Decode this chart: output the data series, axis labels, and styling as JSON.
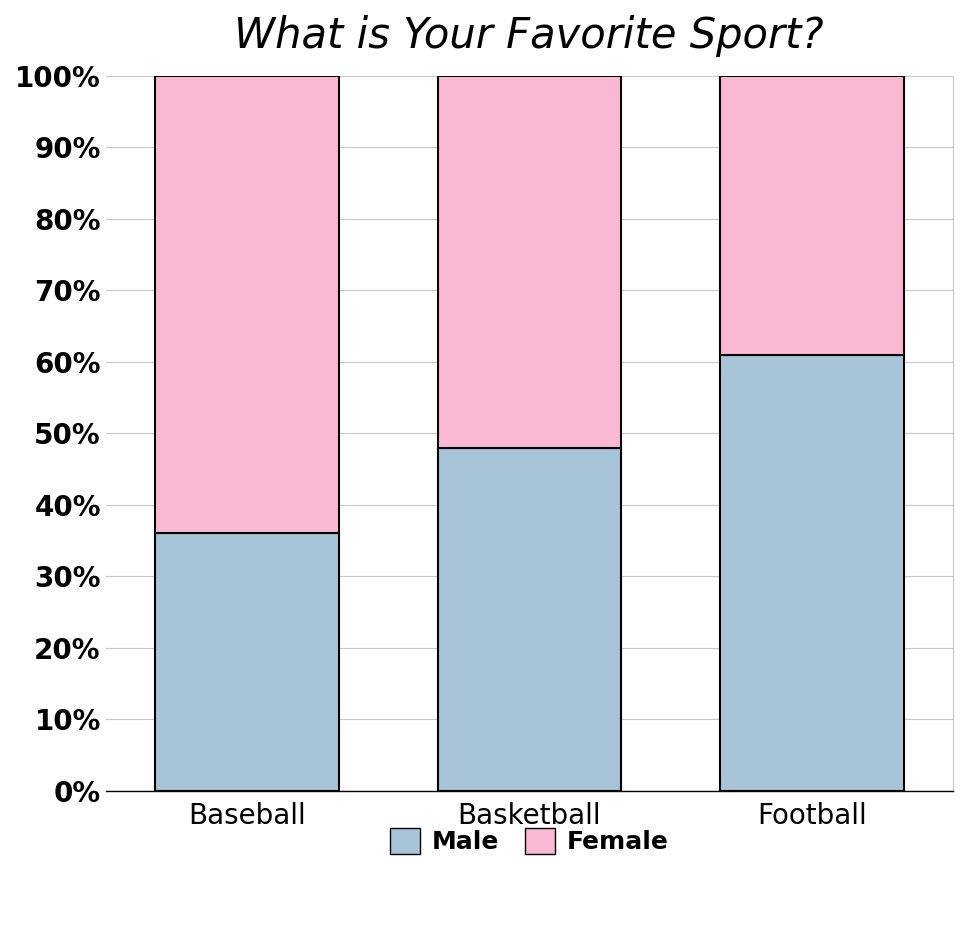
{
  "title": "What is Your Favorite Sport?",
  "categories": [
    "Baseball",
    "Basketball",
    "Football"
  ],
  "male_values": [
    0.36,
    0.48,
    0.61
  ],
  "female_values": [
    0.64,
    0.52,
    0.39
  ],
  "male_color": "#a8c4d8",
  "female_color": "#f9b8d4",
  "bar_edge_color": "black",
  "bar_width": 0.65,
  "ylim": [
    0,
    1.0
  ],
  "yticks": [
    0.0,
    0.1,
    0.2,
    0.3,
    0.4,
    0.5,
    0.6,
    0.7,
    0.8,
    0.9,
    1.0
  ],
  "yticklabels": [
    "0%",
    "10%",
    "20%",
    "30%",
    "40%",
    "50%",
    "60%",
    "70%",
    "80%",
    "90%",
    "100%"
  ],
  "title_fontsize": 30,
  "tick_fontsize": 20,
  "legend_fontsize": 18,
  "background_color": "#ffffff",
  "grid_color": "#c8c8c8"
}
